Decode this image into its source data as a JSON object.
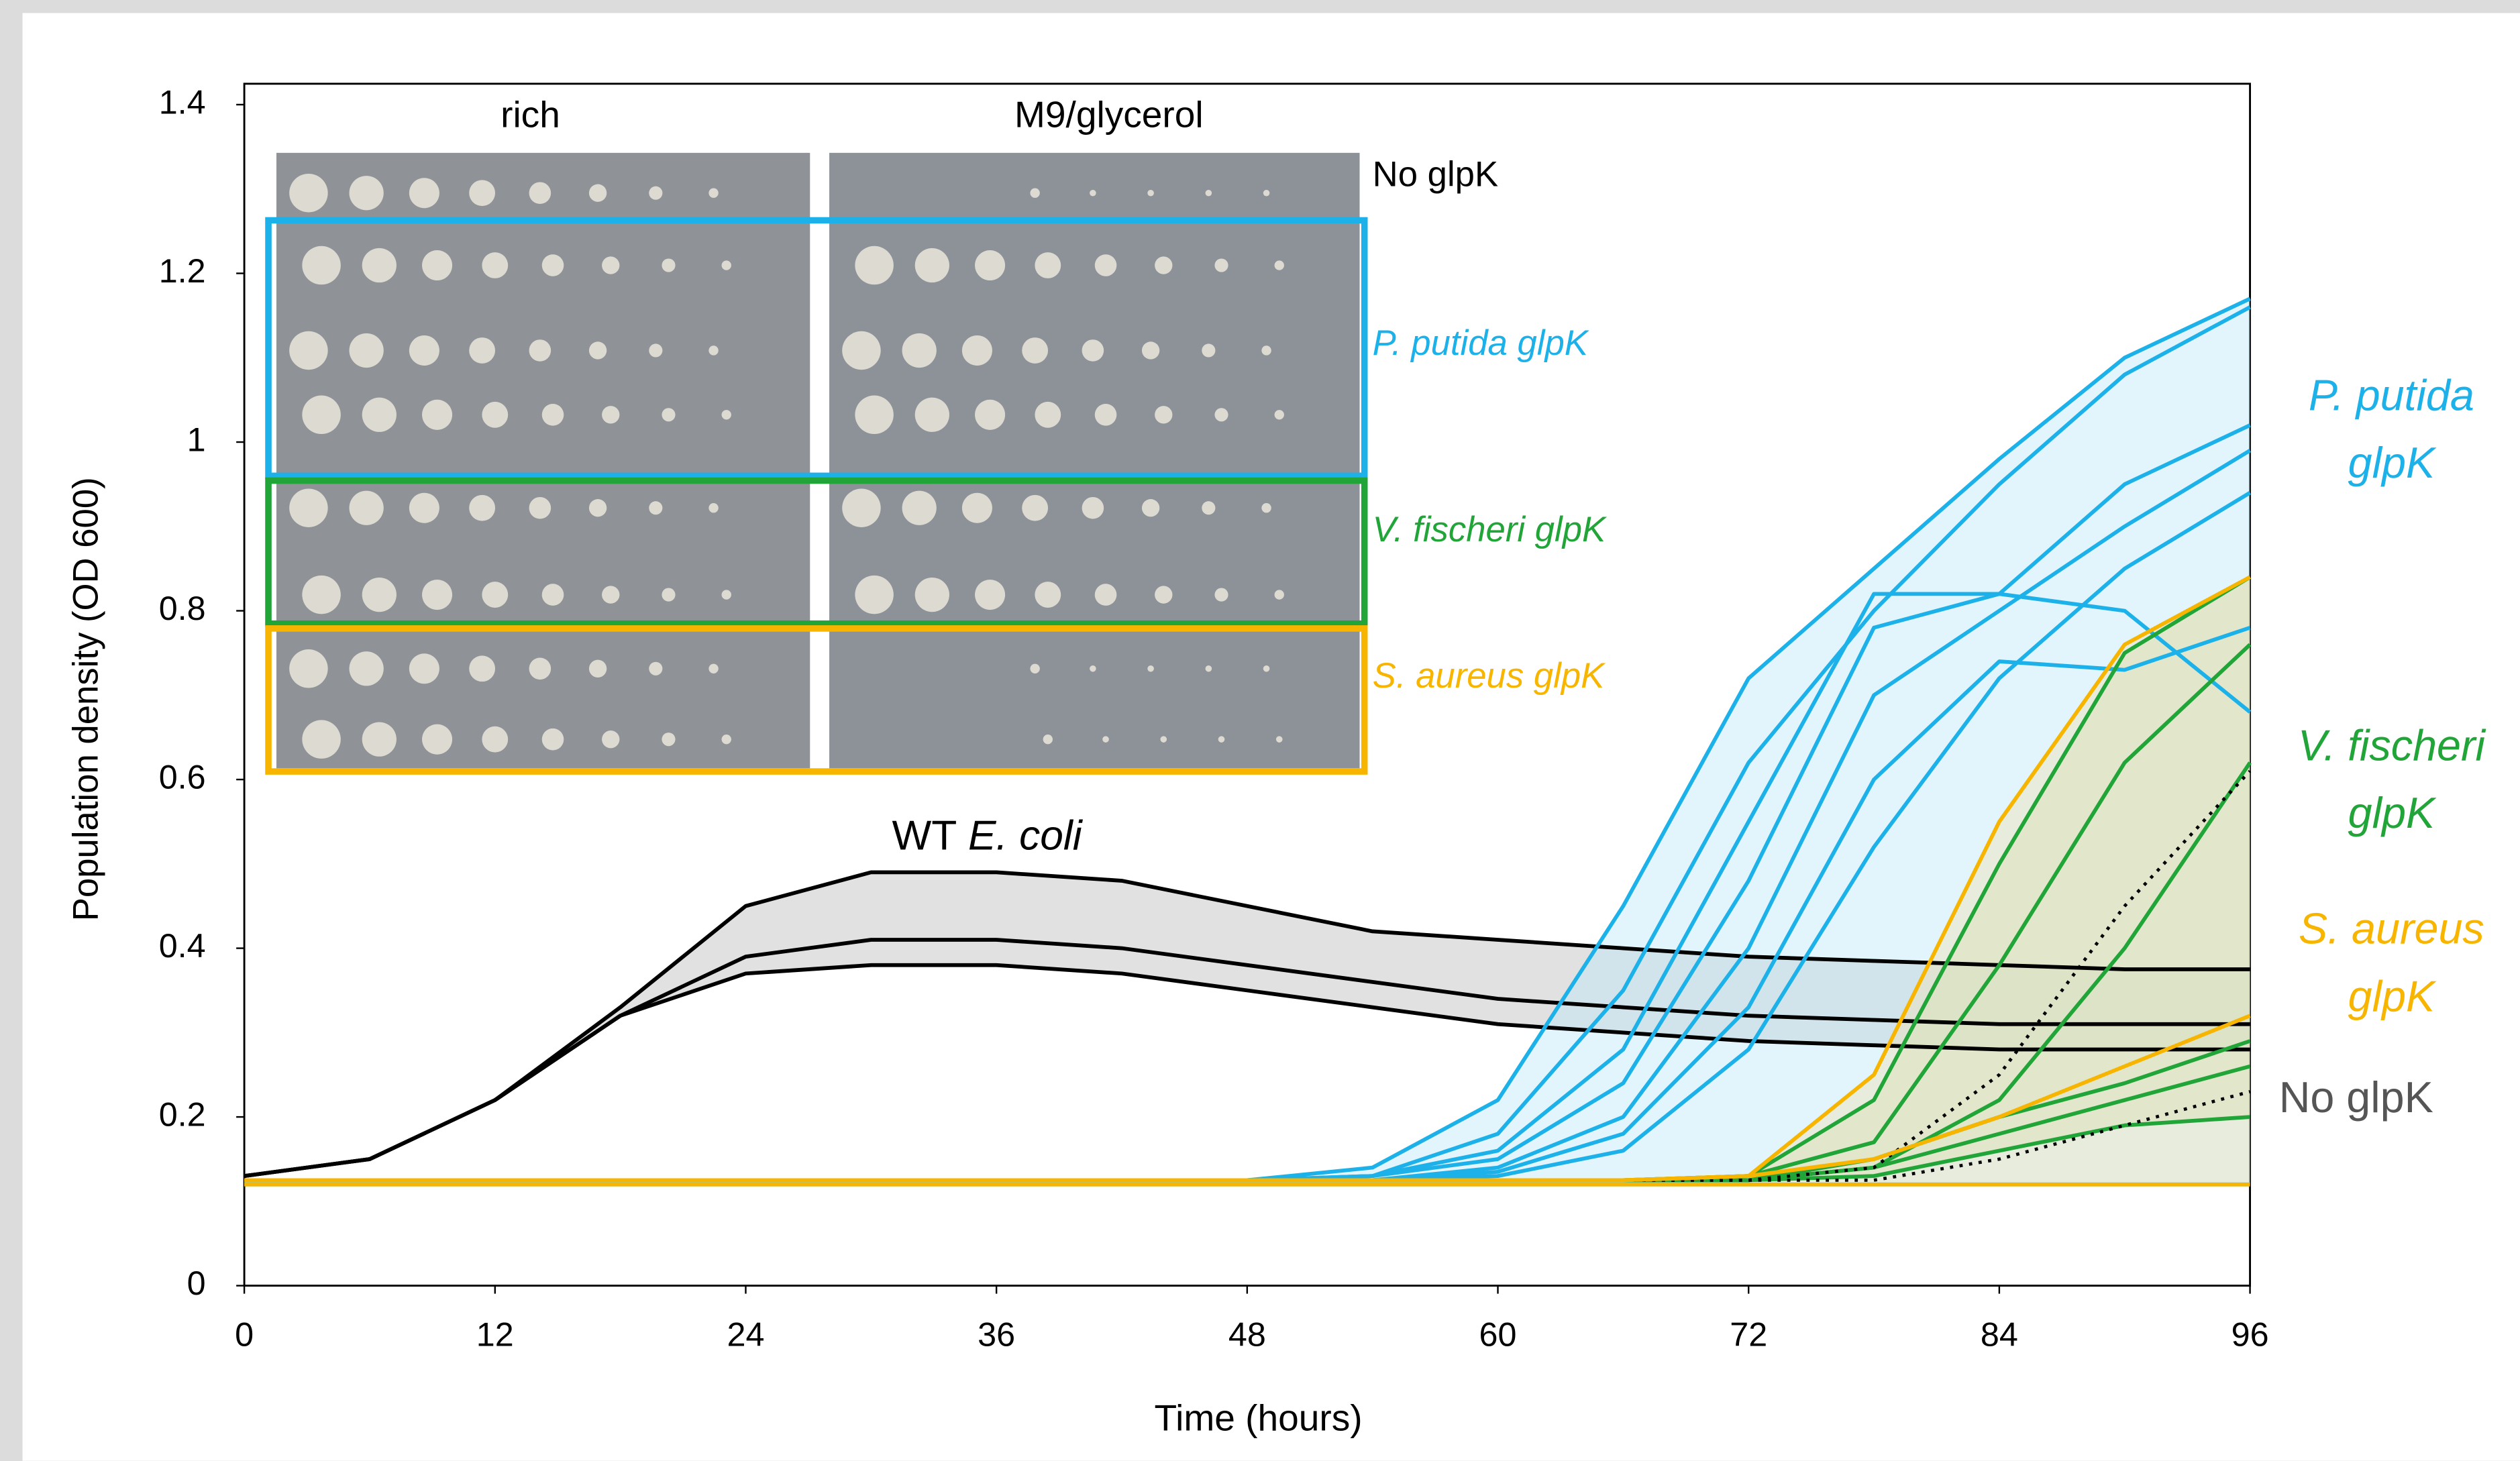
{
  "chart_data": {
    "type": "line",
    "xlabel": "Time (hours)",
    "ylabel": "Population density (OD 600)",
    "xlim": [
      0,
      96
    ],
    "ylim": [
      0,
      1.4
    ],
    "xticks": [
      0,
      12,
      24,
      36,
      48,
      60,
      72,
      84,
      96
    ],
    "yticks": [
      0,
      0.2,
      0.4,
      0.6,
      0.8,
      1,
      1.2,
      1.4
    ],
    "x": [
      0,
      6,
      12,
      18,
      24,
      30,
      36,
      42,
      48,
      54,
      60,
      66,
      72,
      78,
      84,
      90,
      96
    ],
    "series": [
      {
        "color": "#000000",
        "values": [
          0.13,
          0.15,
          0.22,
          0.33,
          0.45,
          0.49,
          0.49,
          0.48,
          0.45,
          0.42,
          0.41,
          0.4,
          0.39,
          0.385,
          0.38,
          0.375,
          0.375
        ]
      },
      {
        "color": "#000000",
        "values": [
          0.13,
          0.15,
          0.22,
          0.32,
          0.39,
          0.41,
          0.41,
          0.4,
          0.38,
          0.36,
          0.34,
          0.33,
          0.32,
          0.315,
          0.31,
          0.31,
          0.31
        ]
      },
      {
        "color": "#000000",
        "values": [
          0.13,
          0.15,
          0.22,
          0.32,
          0.37,
          0.38,
          0.38,
          0.37,
          0.35,
          0.33,
          0.31,
          0.3,
          0.29,
          0.285,
          0.28,
          0.28,
          0.28
        ]
      },
      {
        "color": "#1db1ea",
        "values": [
          0.125,
          0.125,
          0.125,
          0.125,
          0.125,
          0.125,
          0.125,
          0.125,
          0.125,
          0.14,
          0.22,
          0.45,
          0.72,
          0.85,
          0.98,
          1.1,
          1.17
        ]
      },
      {
        "color": "#1db1ea",
        "values": [
          0.125,
          0.125,
          0.125,
          0.125,
          0.125,
          0.125,
          0.125,
          0.125,
          0.125,
          0.13,
          0.18,
          0.35,
          0.62,
          0.8,
          0.95,
          1.08,
          1.16
        ]
      },
      {
        "color": "#1db1ea",
        "values": [
          0.125,
          0.125,
          0.125,
          0.125,
          0.125,
          0.125,
          0.125,
          0.125,
          0.125,
          0.13,
          0.16,
          0.28,
          0.55,
          0.82,
          0.82,
          0.8,
          0.68
        ]
      },
      {
        "color": "#1db1ea",
        "values": [
          0.125,
          0.125,
          0.125,
          0.125,
          0.125,
          0.125,
          0.125,
          0.125,
          0.125,
          0.13,
          0.15,
          0.24,
          0.48,
          0.78,
          0.82,
          0.95,
          1.02
        ]
      },
      {
        "color": "#1db1ea",
        "values": [
          0.125,
          0.125,
          0.125,
          0.125,
          0.125,
          0.125,
          0.125,
          0.125,
          0.125,
          0.125,
          0.14,
          0.2,
          0.4,
          0.7,
          0.8,
          0.9,
          0.99
        ]
      },
      {
        "color": "#1db1ea",
        "values": [
          0.125,
          0.125,
          0.125,
          0.125,
          0.125,
          0.125,
          0.125,
          0.125,
          0.125,
          0.125,
          0.135,
          0.18,
          0.33,
          0.6,
          0.74,
          0.73,
          0.78
        ]
      },
      {
        "color": "#1db1ea",
        "values": [
          0.125,
          0.125,
          0.125,
          0.125,
          0.125,
          0.125,
          0.125,
          0.125,
          0.125,
          0.125,
          0.13,
          0.16,
          0.28,
          0.52,
          0.72,
          0.85,
          0.94
        ]
      },
      {
        "color": "#1db1ea",
        "values": [
          0.12,
          0.12,
          0.12,
          0.12,
          0.12,
          0.12,
          0.12,
          0.12,
          0.12,
          0.12,
          0.12,
          0.12,
          0.12,
          0.12,
          0.12,
          0.12,
          0.12
        ]
      },
      {
        "color": "#22a538",
        "values": [
          0.125,
          0.125,
          0.125,
          0.125,
          0.125,
          0.125,
          0.125,
          0.125,
          0.125,
          0.125,
          0.125,
          0.125,
          0.13,
          0.22,
          0.5,
          0.75,
          0.84
        ]
      },
      {
        "color": "#22a538",
        "values": [
          0.125,
          0.125,
          0.125,
          0.125,
          0.125,
          0.125,
          0.125,
          0.125,
          0.125,
          0.125,
          0.125,
          0.125,
          0.13,
          0.17,
          0.38,
          0.62,
          0.76
        ]
      },
      {
        "color": "#22a538",
        "values": [
          0.125,
          0.125,
          0.125,
          0.125,
          0.125,
          0.125,
          0.125,
          0.125,
          0.125,
          0.125,
          0.125,
          0.125,
          0.125,
          0.14,
          0.22,
          0.4,
          0.62
        ]
      },
      {
        "color": "#22a538",
        "values": [
          0.125,
          0.125,
          0.125,
          0.125,
          0.125,
          0.125,
          0.125,
          0.125,
          0.125,
          0.125,
          0.125,
          0.125,
          0.125,
          0.15,
          0.2,
          0.24,
          0.29
        ]
      },
      {
        "color": "#22a538",
        "values": [
          0.125,
          0.125,
          0.125,
          0.125,
          0.125,
          0.125,
          0.125,
          0.125,
          0.125,
          0.125,
          0.125,
          0.125,
          0.125,
          0.14,
          0.18,
          0.22,
          0.26
        ]
      },
      {
        "color": "#22a538",
        "values": [
          0.125,
          0.125,
          0.125,
          0.125,
          0.125,
          0.125,
          0.125,
          0.125,
          0.125,
          0.125,
          0.125,
          0.125,
          0.125,
          0.13,
          0.16,
          0.19,
          0.2
        ]
      },
      {
        "color": "#000000",
        "dash": true,
        "values": [
          0.125,
          0.125,
          0.125,
          0.125,
          0.125,
          0.125,
          0.125,
          0.125,
          0.125,
          0.125,
          0.125,
          0.125,
          0.125,
          0.14,
          0.25,
          0.45,
          0.61
        ]
      },
      {
        "color": "#000000",
        "dash": true,
        "values": [
          0.125,
          0.125,
          0.125,
          0.125,
          0.125,
          0.125,
          0.125,
          0.125,
          0.125,
          0.125,
          0.125,
          0.125,
          0.125,
          0.125,
          0.15,
          0.19,
          0.23
        ]
      },
      {
        "color": "#f7b500",
        "values": [
          0.125,
          0.125,
          0.125,
          0.125,
          0.125,
          0.125,
          0.125,
          0.125,
          0.125,
          0.125,
          0.125,
          0.125,
          0.13,
          0.25,
          0.55,
          0.76,
          0.84
        ]
      },
      {
        "color": "#f7b500",
        "values": [
          0.125,
          0.125,
          0.125,
          0.125,
          0.125,
          0.125,
          0.125,
          0.125,
          0.125,
          0.125,
          0.125,
          0.125,
          0.13,
          0.15,
          0.2,
          0.26,
          0.32
        ]
      },
      {
        "color": "#f7b500",
        "values": [
          0.12,
          0.12,
          0.12,
          0.12,
          0.12,
          0.12,
          0.12,
          0.12,
          0.12,
          0.12,
          0.12,
          0.12,
          0.12,
          0.12,
          0.12,
          0.12,
          0.12
        ]
      }
    ],
    "annotation": [
      "WT",
      "E. coli"
    ],
    "labels": [
      {
        "lines": [
          "P. putida",
          "glpK"
        ],
        "color": "#1db1ea"
      },
      {
        "lines": [
          "V. fischeri",
          "glpK"
        ],
        "color": "#22a538"
      },
      {
        "lines": [
          "S. aureus",
          "glpK"
        ],
        "color": "#f7b500"
      },
      {
        "lines": [
          "No glpK"
        ],
        "color": "#555555"
      }
    ],
    "inset": {
      "columns": [
        "rich",
        "M9/glycerol"
      ],
      "rows": [
        {
          "label": "No glpK",
          "color": "#000000"
        },
        {
          "label": "P. putida glpK",
          "color": "#1db1ea"
        },
        {
          "label": "V. fischeri glpK",
          "color": "#22a538"
        },
        {
          "label": "S. aureus glpK",
          "color": "#f7b500"
        }
      ]
    }
  }
}
